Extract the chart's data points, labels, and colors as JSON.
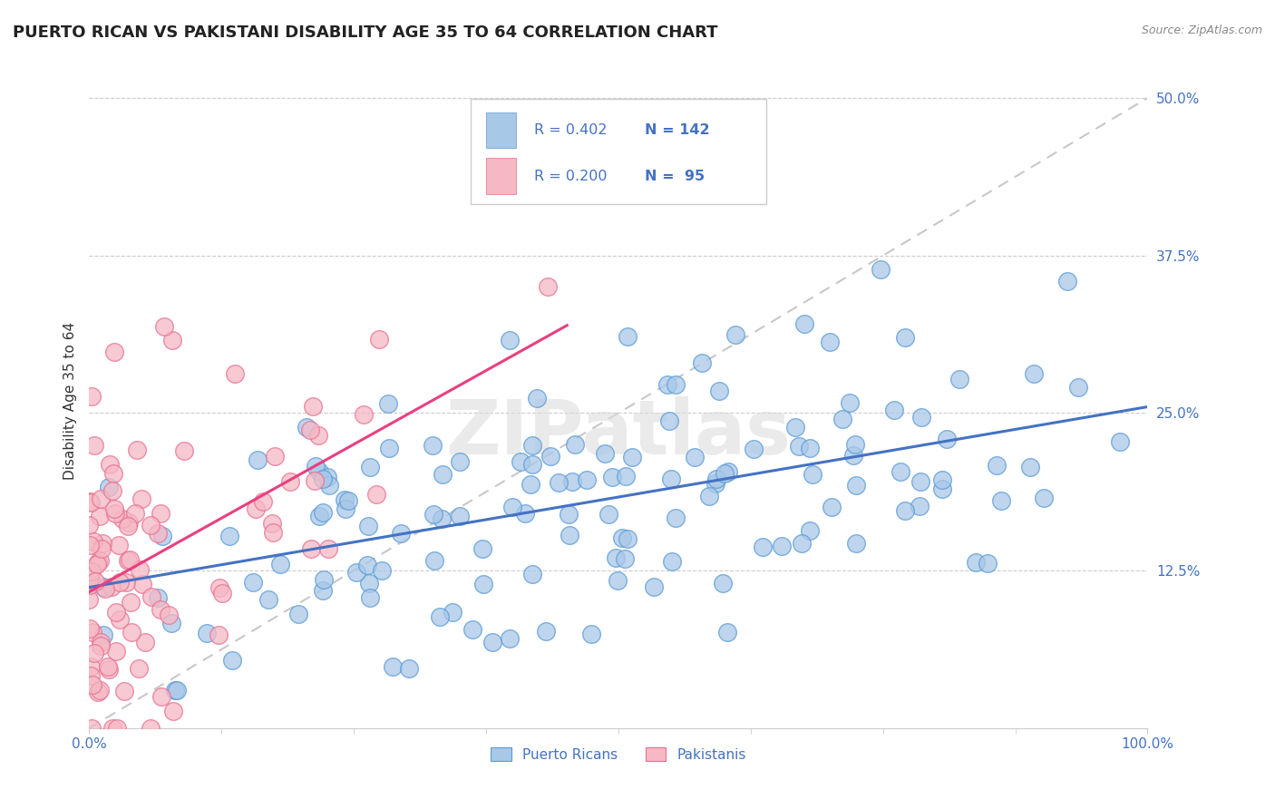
{
  "title": "PUERTO RICAN VS PAKISTANI DISABILITY AGE 35 TO 64 CORRELATION CHART",
  "source": "Source: ZipAtlas.com",
  "ylabel": "Disability Age 35 to 64",
  "xlim": [
    0,
    1.0
  ],
  "ylim": [
    0,
    0.52
  ],
  "yticks": [
    0.0,
    0.125,
    0.25,
    0.375,
    0.5
  ],
  "yticklabels": [
    "",
    "12.5%",
    "25.0%",
    "37.5%",
    "50.0%"
  ],
  "blue_dot_color": "#A8C8E8",
  "blue_dot_edge": "#5B9BD5",
  "pink_dot_color": "#F5B8C4",
  "pink_dot_edge": "#E87090",
  "blue_line_color": "#4472C4",
  "pink_line_color": "#E84080",
  "dashed_line_color": "#C8C8C8",
  "tick_color": "#4472C4",
  "legend_R_blue": "0.402",
  "legend_N_blue": "142",
  "legend_R_pink": "0.200",
  "legend_N_pink": "95",
  "legend_label_blue": "Puerto Ricans",
  "legend_label_pink": "Pakistanis",
  "watermark": "ZIPatlas",
  "title_fontsize": 13,
  "axis_label_fontsize": 11,
  "tick_fontsize": 11,
  "blue_N": 142,
  "pink_N": 95,
  "blue_seed": 42,
  "pink_seed": 7
}
